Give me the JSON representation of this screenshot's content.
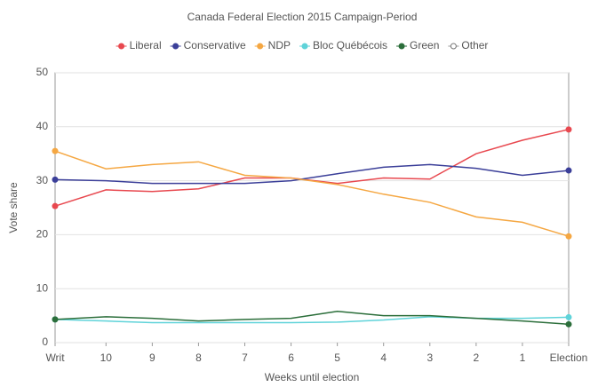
{
  "chart_data": {
    "type": "line",
    "title": "Canada Federal Election 2015 Campaign-Period",
    "xlabel": "Weeks until election",
    "ylabel": "Vote share",
    "x": [
      11.1,
      10,
      9,
      8,
      7,
      6,
      5,
      4,
      3,
      2,
      1,
      0
    ],
    "xlim": [
      11.1,
      0
    ],
    "xticks": [
      {
        "value": 11.1,
        "label": "Writ"
      },
      10,
      9,
      8,
      7,
      6,
      5,
      4,
      3,
      2,
      1,
      {
        "value": 0,
        "label": "Election"
      }
    ],
    "ylim": [
      0,
      50
    ],
    "yticks": [
      0,
      10,
      20,
      30,
      40,
      50
    ],
    "grid": true,
    "legend": "top",
    "series": [
      {
        "name": "Liberal",
        "color": "#e8484f",
        "values": [
          25.3,
          28.3,
          28,
          28.5,
          30.5,
          30.5,
          29.5,
          30.5,
          30.3,
          35,
          37.5,
          39.5
        ]
      },
      {
        "name": "Conservative",
        "color": "#3b3f99",
        "values": [
          30.2,
          30,
          29.5,
          29.5,
          29.5,
          30,
          31.3,
          32.5,
          33,
          32.3,
          31,
          31.9
        ]
      },
      {
        "name": "NDP",
        "color": "#f5a742",
        "values": [
          35.5,
          32.2,
          33,
          33.5,
          31,
          30.5,
          29.3,
          27.5,
          26,
          23.3,
          22.3,
          19.7
        ]
      },
      {
        "name": "Bloc Québécois",
        "color": "#5fd3d9",
        "values": [
          4.3,
          4.0,
          3.7,
          3.7,
          3.7,
          3.7,
          3.8,
          4.2,
          4.8,
          4.5,
          4.5,
          4.7
        ]
      },
      {
        "name": "Green",
        "color": "#2b6e3a",
        "values": [
          4.3,
          4.8,
          4.5,
          4.0,
          4.3,
          4.5,
          5.8,
          5.0,
          5.0,
          4.5,
          4.0,
          3.4
        ]
      },
      {
        "name": "Other",
        "color": "#ffffff",
        "values": [
          null,
          null,
          null,
          null,
          null,
          null,
          null,
          null,
          null,
          null,
          null,
          null
        ]
      }
    ]
  }
}
